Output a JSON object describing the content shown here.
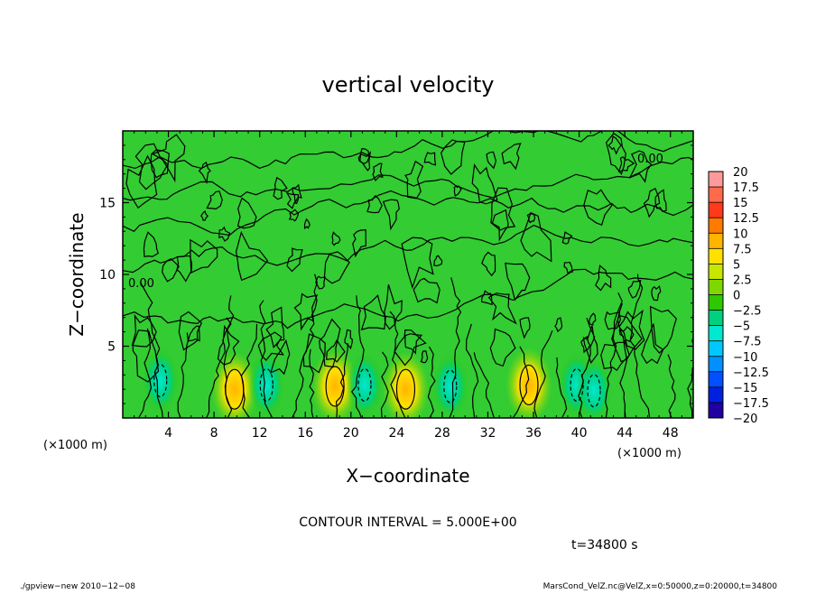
{
  "chart_data": {
    "type": "heatmap",
    "title": "vertical velocity",
    "xlabel": "X−coordinate",
    "ylabel": "Z−coordinate",
    "x_unit_left": "(×1000 m)",
    "x_unit_right": "(×1000 m)",
    "xlim": [
      0,
      50
    ],
    "ylim": [
      0,
      20
    ],
    "x_ticks": [
      4,
      8,
      12,
      16,
      20,
      24,
      28,
      32,
      36,
      40,
      44,
      48
    ],
    "x_tick_labels": [
      "4",
      "8",
      "12",
      "16",
      "20",
      "24",
      "28",
      "32",
      "36",
      "40",
      "44",
      "48"
    ],
    "y_ticks": [
      5,
      10,
      15
    ],
    "y_tick_labels": [
      "5",
      "10",
      "15"
    ],
    "contour_label": "0.00",
    "colorbar": {
      "levels": [
        20,
        17.5,
        15,
        12.5,
        10,
        7.5,
        5,
        2.5,
        0,
        -2.5,
        -5,
        -7.5,
        -10,
        -12.5,
        -15,
        -17.5,
        -20
      ],
      "labels": [
        "20",
        "17.5",
        "15",
        "12.5",
        "10",
        "7.5",
        "5",
        "2.5",
        "0",
        "−2.5",
        "−5",
        "−7.5",
        "−10",
        "−12.5",
        "−15",
        "−17.5",
        "−20"
      ],
      "colors": [
        "#ff9a9a",
        "#ff6a4a",
        "#ff3a1a",
        "#ff7a00",
        "#ffb400",
        "#ffe000",
        "#c8e600",
        "#7ed800",
        "#2ec800",
        "#00d080",
        "#00e8d0",
        "#00c8ff",
        "#0090ff",
        "#0050ff",
        "#0020e0",
        "#2000a0",
        "#6010b0"
      ]
    },
    "background_color": "#33cc33",
    "updraft_cells": [
      {
        "x": 9.8,
        "z": 2.0,
        "value": 7.5
      },
      {
        "x": 18.6,
        "z": 2.2,
        "value": 7.5
      },
      {
        "x": 24.8,
        "z": 2.0,
        "value": 7.5
      },
      {
        "x": 35.6,
        "z": 2.3,
        "value": 7.5
      }
    ],
    "downdraft_cells": [
      {
        "x": 3.3,
        "z": 2.6,
        "value": -7.5
      },
      {
        "x": 12.6,
        "z": 2.3,
        "value": -5
      },
      {
        "x": 21.2,
        "z": 2.3,
        "value": -5
      },
      {
        "x": 28.7,
        "z": 2.2,
        "value": -5
      },
      {
        "x": 39.8,
        "z": 2.3,
        "value": -5
      },
      {
        "x": 41.3,
        "z": 1.9,
        "value": -5
      }
    ]
  },
  "contour_interval_text": "CONTOUR INTERVAL = 5.000E+00",
  "time_text": "t=34800 s",
  "footer_left": "./gpview−new  2010−12−08",
  "footer_right": "MarsCond_VelZ.nc@VelZ,x=0:50000,z=0:20000,t=34800"
}
